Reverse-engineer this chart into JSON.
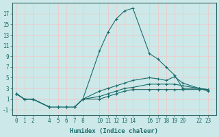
{
  "xlabel": "Humidex (Indice chaleur)",
  "bg_color": "#cce8e8",
  "grid_color": "#f0c8c8",
  "line_color": "#1a6b6b",
  "x_ticks": [
    0,
    1,
    2,
    4,
    5,
    6,
    7,
    8,
    10,
    11,
    12,
    13,
    14,
    16,
    17,
    18,
    19,
    20,
    22,
    23
  ],
  "series": [
    {
      "x": [
        0,
        1,
        2,
        4,
        5,
        6,
        7,
        8,
        10,
        11,
        12,
        13,
        14,
        16,
        17,
        18,
        19,
        20,
        22,
        23
      ],
      "y": [
        2,
        1,
        1,
        -0.5,
        -0.5,
        -0.5,
        -0.5,
        1,
        10,
        13.5,
        16,
        17.5,
        18,
        9.5,
        8.5,
        7,
        5.5,
        3,
        3,
        2.5
      ]
    },
    {
      "x": [
        0,
        1,
        2,
        4,
        5,
        6,
        7,
        8,
        10,
        11,
        12,
        13,
        14,
        16,
        17,
        18,
        19,
        20,
        22,
        23
      ],
      "y": [
        2,
        1,
        1,
        -0.5,
        -0.5,
        -0.5,
        -0.5,
        1,
        2.5,
        3.0,
        3.5,
        4.0,
        4.5,
        5.0,
        4.8,
        4.5,
        5.2,
        4.0,
        3.0,
        2.8
      ]
    },
    {
      "x": [
        0,
        1,
        2,
        4,
        5,
        6,
        7,
        8,
        10,
        11,
        12,
        13,
        14,
        16,
        17,
        18,
        19,
        20,
        22,
        23
      ],
      "y": [
        2,
        1,
        1,
        -0.5,
        -0.5,
        -0.5,
        -0.5,
        1,
        1.5,
        2.0,
        2.5,
        3.0,
        3.2,
        3.8,
        3.8,
        3.8,
        3.8,
        3.5,
        3.0,
        2.8
      ]
    },
    {
      "x": [
        0,
        1,
        2,
        4,
        5,
        6,
        7,
        8,
        10,
        11,
        12,
        13,
        14,
        16,
        17,
        18,
        19,
        20,
        22,
        23
      ],
      "y": [
        2,
        1,
        1,
        -0.5,
        -0.5,
        -0.5,
        -0.5,
        1,
        1.0,
        1.5,
        2.0,
        2.5,
        2.8,
        2.8,
        2.8,
        2.8,
        2.8,
        2.8,
        2.8,
        2.8
      ]
    }
  ],
  "xlim": [
    -0.5,
    24
  ],
  "ylim": [
    -2,
    19
  ],
  "yticks": [
    -1,
    1,
    3,
    5,
    7,
    9,
    11,
    13,
    15,
    17
  ]
}
